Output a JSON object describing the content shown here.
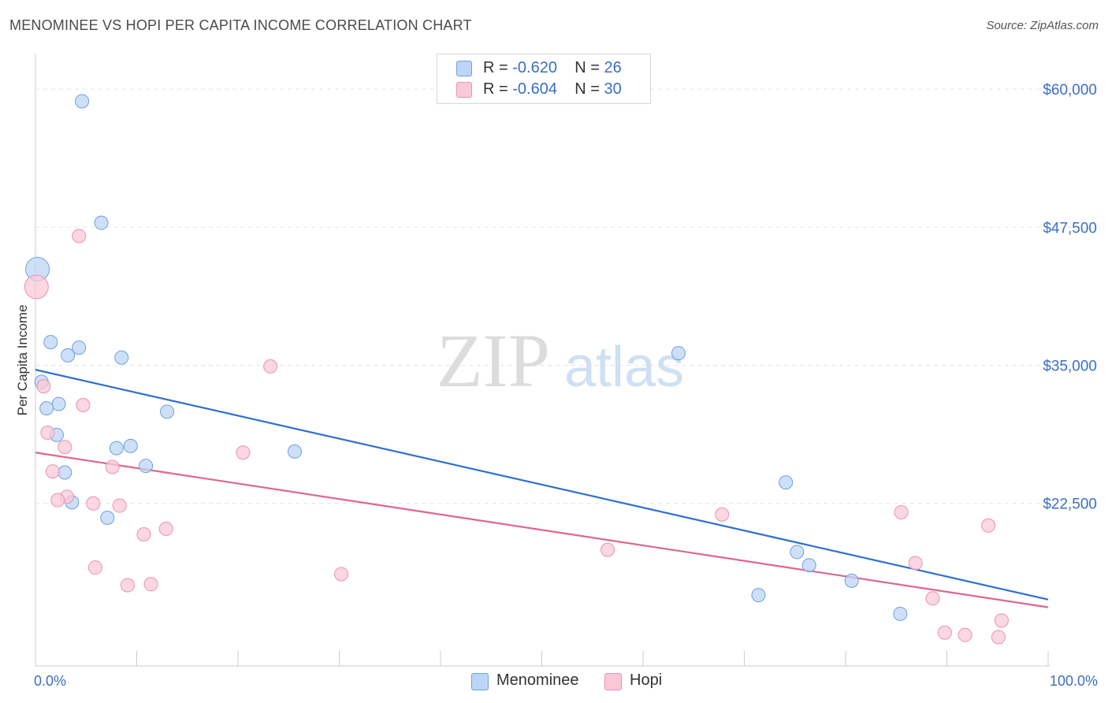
{
  "header": {
    "title": "MENOMINEE VS HOPI PER CAPITA INCOME CORRELATION CHART",
    "source": "Source: ZipAtlas.com"
  },
  "watermark": {
    "zip": "ZIP",
    "atlas": "atlas"
  },
  "colors": {
    "menominee_fill": "#bdd5f5",
    "menominee_stroke": "#6f9fe0",
    "menominee_line": "#2f6fd0",
    "hopi_fill": "#f9c9d8",
    "hopi_stroke": "#ee8fb0",
    "hopi_line": "#e0668f",
    "axis_label": "#3a6fc4",
    "grid": "#e3e3e3"
  },
  "legend": {
    "rows": [
      {
        "r_label": "R = ",
        "r_value": "-0.620",
        "n_label": "N = ",
        "n_value": "26"
      },
      {
        "r_label": "R = ",
        "r_value": "-0.604",
        "n_label": "N = ",
        "n_value": "30"
      }
    ]
  },
  "chart_data": {
    "type": "scatter",
    "title": "MENOMINEE VS HOPI PER CAPITA INCOME CORRELATION CHART",
    "xlabel": "",
    "ylabel": "Per Capita Income",
    "xlim": [
      0,
      100
    ],
    "ylim": [
      9000,
      62500
    ],
    "x_tick_labels": [
      "0.0%",
      "100.0%"
    ],
    "y_ticks": [
      {
        "value": 22500,
        "label": "$22,500"
      },
      {
        "value": 35000,
        "label": "$35,000"
      },
      {
        "value": 47500,
        "label": "$47,500"
      },
      {
        "value": 60000,
        "label": "$60,000"
      }
    ],
    "grid": true,
    "legend_position": "top-center",
    "series": [
      {
        "name": "Menominee",
        "r": -0.62,
        "n": 26,
        "trend": {
          "x0": 0,
          "y0": 34600,
          "x1": 100,
          "y1": 13800
        },
        "points": [
          {
            "x": 4.6,
            "y": 58900
          },
          {
            "x": 6.5,
            "y": 47900
          },
          {
            "x": 0.2,
            "y": 43700,
            "big": true
          },
          {
            "x": 1.5,
            "y": 37100
          },
          {
            "x": 4.3,
            "y": 36600
          },
          {
            "x": 3.2,
            "y": 35900
          },
          {
            "x": 8.5,
            "y": 35700
          },
          {
            "x": 63.5,
            "y": 36100
          },
          {
            "x": 0.6,
            "y": 33500
          },
          {
            "x": 2.3,
            "y": 31500
          },
          {
            "x": 1.1,
            "y": 31100
          },
          {
            "x": 13.0,
            "y": 30800
          },
          {
            "x": 2.1,
            "y": 28700
          },
          {
            "x": 8.0,
            "y": 27500
          },
          {
            "x": 9.4,
            "y": 27700
          },
          {
            "x": 25.6,
            "y": 27200
          },
          {
            "x": 10.9,
            "y": 25900
          },
          {
            "x": 2.9,
            "y": 25300
          },
          {
            "x": 74.1,
            "y": 24400
          },
          {
            "x": 3.6,
            "y": 22600
          },
          {
            "x": 7.1,
            "y": 21200
          },
          {
            "x": 75.2,
            "y": 18100
          },
          {
            "x": 76.4,
            "y": 16900
          },
          {
            "x": 80.6,
            "y": 15500
          },
          {
            "x": 71.4,
            "y": 14200
          },
          {
            "x": 85.4,
            "y": 12500
          }
        ]
      },
      {
        "name": "Hopi",
        "r": -0.604,
        "n": 30,
        "trend": {
          "x0": 0,
          "y0": 27100,
          "x1": 100,
          "y1": 13100
        },
        "points": [
          {
            "x": 0.1,
            "y": 42100,
            "big": true
          },
          {
            "x": 4.3,
            "y": 46700
          },
          {
            "x": 23.2,
            "y": 34900
          },
          {
            "x": 0.8,
            "y": 33100
          },
          {
            "x": 4.7,
            "y": 31400
          },
          {
            "x": 1.2,
            "y": 28900
          },
          {
            "x": 2.9,
            "y": 27600
          },
          {
            "x": 20.5,
            "y": 27100
          },
          {
            "x": 7.6,
            "y": 25800
          },
          {
            "x": 1.7,
            "y": 25400
          },
          {
            "x": 3.1,
            "y": 23100
          },
          {
            "x": 2.2,
            "y": 22800
          },
          {
            "x": 5.7,
            "y": 22500
          },
          {
            "x": 8.3,
            "y": 22300
          },
          {
            "x": 12.9,
            "y": 20200
          },
          {
            "x": 10.7,
            "y": 19700
          },
          {
            "x": 67.8,
            "y": 21500
          },
          {
            "x": 85.5,
            "y": 21700
          },
          {
            "x": 94.1,
            "y": 20500
          },
          {
            "x": 56.5,
            "y": 18300
          },
          {
            "x": 5.9,
            "y": 16700
          },
          {
            "x": 30.2,
            "y": 16100
          },
          {
            "x": 9.1,
            "y": 15100
          },
          {
            "x": 11.4,
            "y": 15200
          },
          {
            "x": 86.9,
            "y": 17100
          },
          {
            "x": 88.6,
            "y": 13900
          },
          {
            "x": 95.4,
            "y": 11900
          },
          {
            "x": 89.8,
            "y": 10800
          },
          {
            "x": 91.8,
            "y": 10600
          },
          {
            "x": 95.1,
            "y": 10400
          }
        ]
      }
    ]
  }
}
